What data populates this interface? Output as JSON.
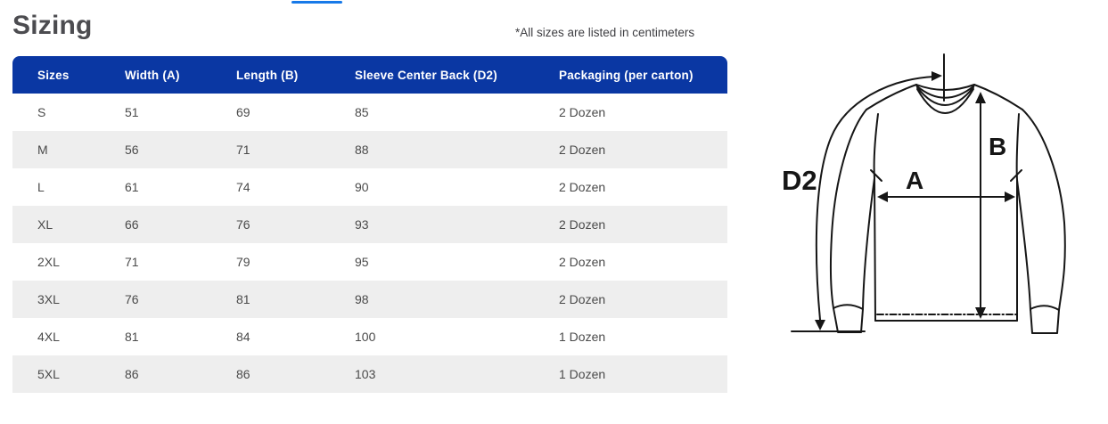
{
  "page": {
    "title": "Sizing",
    "note": "*All sizes are listed in centimeters"
  },
  "colors": {
    "header_bg": "#0a37a3",
    "active_tab_accent": "#1779e8",
    "row_stripe": "#eeeeee",
    "diagram_stroke": "#161616"
  },
  "table": {
    "columns": [
      "Sizes",
      "Width (A)",
      "Length (B)",
      "Sleeve Center Back (D2)",
      "Packaging (per carton)"
    ],
    "rows": [
      [
        "S",
        "51",
        "69",
        "85",
        "2 Dozen"
      ],
      [
        "M",
        "56",
        "71",
        "88",
        "2 Dozen"
      ],
      [
        "L",
        "61",
        "74",
        "90",
        "2 Dozen"
      ],
      [
        "XL",
        "66",
        "76",
        "93",
        "2 Dozen"
      ],
      [
        "2XL",
        "71",
        "79",
        "95",
        "2 Dozen"
      ],
      [
        "3XL",
        "76",
        "81",
        "98",
        "2 Dozen"
      ],
      [
        "4XL",
        "81",
        "84",
        "100",
        "1 Dozen"
      ],
      [
        "5XL",
        "86",
        "86",
        "103",
        "1 Dozen"
      ]
    ]
  },
  "diagram": {
    "labels": {
      "d2": "D2",
      "a": "A",
      "b": "B"
    }
  }
}
